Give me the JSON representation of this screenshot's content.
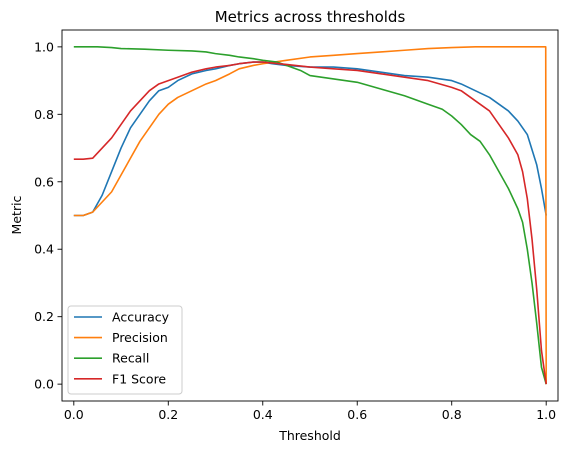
{
  "chart_data": {
    "type": "line",
    "title": "Metrics across thresholds",
    "xlabel": "Threshold",
    "ylabel": "Metric",
    "xlim": [
      -0.025,
      1.025
    ],
    "ylim": [
      -0.05,
      1.05
    ],
    "x_ticks": [
      0.0,
      0.2,
      0.4,
      0.6,
      0.8,
      1.0
    ],
    "x_tick_labels": [
      "0.0",
      "0.2",
      "0.4",
      "0.6",
      "0.8",
      "1.0"
    ],
    "y_ticks": [
      0.0,
      0.2,
      0.4,
      0.6,
      0.8,
      1.0
    ],
    "y_tick_labels": [
      "0.0",
      "0.2",
      "0.4",
      "0.6",
      "0.8",
      "1.0"
    ],
    "grid": false,
    "legend_position": "lower-left",
    "series": [
      {
        "name": "Accuracy",
        "color": "#1f77b4",
        "points": [
          [
            0.0,
            0.5
          ],
          [
            0.02,
            0.5
          ],
          [
            0.04,
            0.51
          ],
          [
            0.06,
            0.56
          ],
          [
            0.08,
            0.63
          ],
          [
            0.1,
            0.7
          ],
          [
            0.12,
            0.76
          ],
          [
            0.14,
            0.8
          ],
          [
            0.16,
            0.84
          ],
          [
            0.18,
            0.87
          ],
          [
            0.2,
            0.88
          ],
          [
            0.22,
            0.9
          ],
          [
            0.25,
            0.92
          ],
          [
            0.28,
            0.93
          ],
          [
            0.3,
            0.935
          ],
          [
            0.33,
            0.945
          ],
          [
            0.35,
            0.95
          ],
          [
            0.38,
            0.955
          ],
          [
            0.4,
            0.955
          ],
          [
            0.42,
            0.95
          ],
          [
            0.45,
            0.945
          ],
          [
            0.5,
            0.94
          ],
          [
            0.55,
            0.94
          ],
          [
            0.6,
            0.935
          ],
          [
            0.65,
            0.925
          ],
          [
            0.7,
            0.915
          ],
          [
            0.75,
            0.91
          ],
          [
            0.8,
            0.9
          ],
          [
            0.82,
            0.89
          ],
          [
            0.85,
            0.87
          ],
          [
            0.88,
            0.85
          ],
          [
            0.9,
            0.83
          ],
          [
            0.92,
            0.81
          ],
          [
            0.94,
            0.78
          ],
          [
            0.96,
            0.74
          ],
          [
            0.98,
            0.65
          ],
          [
            0.99,
            0.58
          ],
          [
            1.0,
            0.5
          ]
        ]
      },
      {
        "name": "Precision",
        "color": "#ff7f0e",
        "points": [
          [
            0.0,
            0.5
          ],
          [
            0.02,
            0.5
          ],
          [
            0.04,
            0.51
          ],
          [
            0.06,
            0.54
          ],
          [
            0.08,
            0.57
          ],
          [
            0.1,
            0.62
          ],
          [
            0.12,
            0.67
          ],
          [
            0.14,
            0.72
          ],
          [
            0.16,
            0.76
          ],
          [
            0.18,
            0.8
          ],
          [
            0.2,
            0.83
          ],
          [
            0.22,
            0.85
          ],
          [
            0.25,
            0.87
          ],
          [
            0.28,
            0.89
          ],
          [
            0.3,
            0.9
          ],
          [
            0.33,
            0.92
          ],
          [
            0.35,
            0.935
          ],
          [
            0.38,
            0.945
          ],
          [
            0.4,
            0.95
          ],
          [
            0.45,
            0.96
          ],
          [
            0.5,
            0.97
          ],
          [
            0.55,
            0.975
          ],
          [
            0.6,
            0.98
          ],
          [
            0.65,
            0.985
          ],
          [
            0.7,
            0.99
          ],
          [
            0.75,
            0.995
          ],
          [
            0.8,
            0.998
          ],
          [
            0.85,
            1.0
          ],
          [
            0.9,
            1.0
          ],
          [
            0.95,
            1.0
          ],
          [
            0.999,
            1.0
          ],
          [
            1.0,
            0.0
          ]
        ]
      },
      {
        "name": "Recall",
        "color": "#2ca02c",
        "points": [
          [
            0.0,
            1.0
          ],
          [
            0.05,
            1.0
          ],
          [
            0.08,
            0.998
          ],
          [
            0.1,
            0.995
          ],
          [
            0.15,
            0.993
          ],
          [
            0.2,
            0.99
          ],
          [
            0.25,
            0.988
          ],
          [
            0.28,
            0.985
          ],
          [
            0.3,
            0.98
          ],
          [
            0.33,
            0.975
          ],
          [
            0.35,
            0.97
          ],
          [
            0.38,
            0.965
          ],
          [
            0.4,
            0.96
          ],
          [
            0.43,
            0.955
          ],
          [
            0.45,
            0.945
          ],
          [
            0.48,
            0.93
          ],
          [
            0.5,
            0.915
          ],
          [
            0.55,
            0.905
          ],
          [
            0.6,
            0.895
          ],
          [
            0.65,
            0.875
          ],
          [
            0.7,
            0.855
          ],
          [
            0.75,
            0.83
          ],
          [
            0.78,
            0.815
          ],
          [
            0.8,
            0.795
          ],
          [
            0.82,
            0.77
          ],
          [
            0.84,
            0.74
          ],
          [
            0.86,
            0.72
          ],
          [
            0.88,
            0.68
          ],
          [
            0.9,
            0.63
          ],
          [
            0.92,
            0.58
          ],
          [
            0.94,
            0.52
          ],
          [
            0.95,
            0.48
          ],
          [
            0.96,
            0.4
          ],
          [
            0.97,
            0.3
          ],
          [
            0.98,
            0.18
          ],
          [
            0.99,
            0.05
          ],
          [
            1.0,
            0.0
          ]
        ]
      },
      {
        "name": "F1 Score",
        "color": "#d62728",
        "points": [
          [
            0.0,
            0.667
          ],
          [
            0.02,
            0.667
          ],
          [
            0.04,
            0.67
          ],
          [
            0.06,
            0.7
          ],
          [
            0.08,
            0.73
          ],
          [
            0.1,
            0.77
          ],
          [
            0.12,
            0.81
          ],
          [
            0.14,
            0.84
          ],
          [
            0.16,
            0.87
          ],
          [
            0.18,
            0.89
          ],
          [
            0.2,
            0.9
          ],
          [
            0.22,
            0.91
          ],
          [
            0.25,
            0.925
          ],
          [
            0.28,
            0.935
          ],
          [
            0.3,
            0.94
          ],
          [
            0.33,
            0.945
          ],
          [
            0.35,
            0.95
          ],
          [
            0.38,
            0.955
          ],
          [
            0.4,
            0.955
          ],
          [
            0.42,
            0.952
          ],
          [
            0.45,
            0.948
          ],
          [
            0.5,
            0.94
          ],
          [
            0.55,
            0.935
          ],
          [
            0.6,
            0.93
          ],
          [
            0.65,
            0.92
          ],
          [
            0.7,
            0.91
          ],
          [
            0.75,
            0.9
          ],
          [
            0.8,
            0.88
          ],
          [
            0.82,
            0.87
          ],
          [
            0.84,
            0.85
          ],
          [
            0.86,
            0.83
          ],
          [
            0.88,
            0.81
          ],
          [
            0.9,
            0.77
          ],
          [
            0.92,
            0.73
          ],
          [
            0.94,
            0.68
          ],
          [
            0.95,
            0.63
          ],
          [
            0.96,
            0.55
          ],
          [
            0.97,
            0.43
          ],
          [
            0.98,
            0.28
          ],
          [
            0.99,
            0.1
          ],
          [
            1.0,
            0.0
          ]
        ]
      }
    ]
  }
}
